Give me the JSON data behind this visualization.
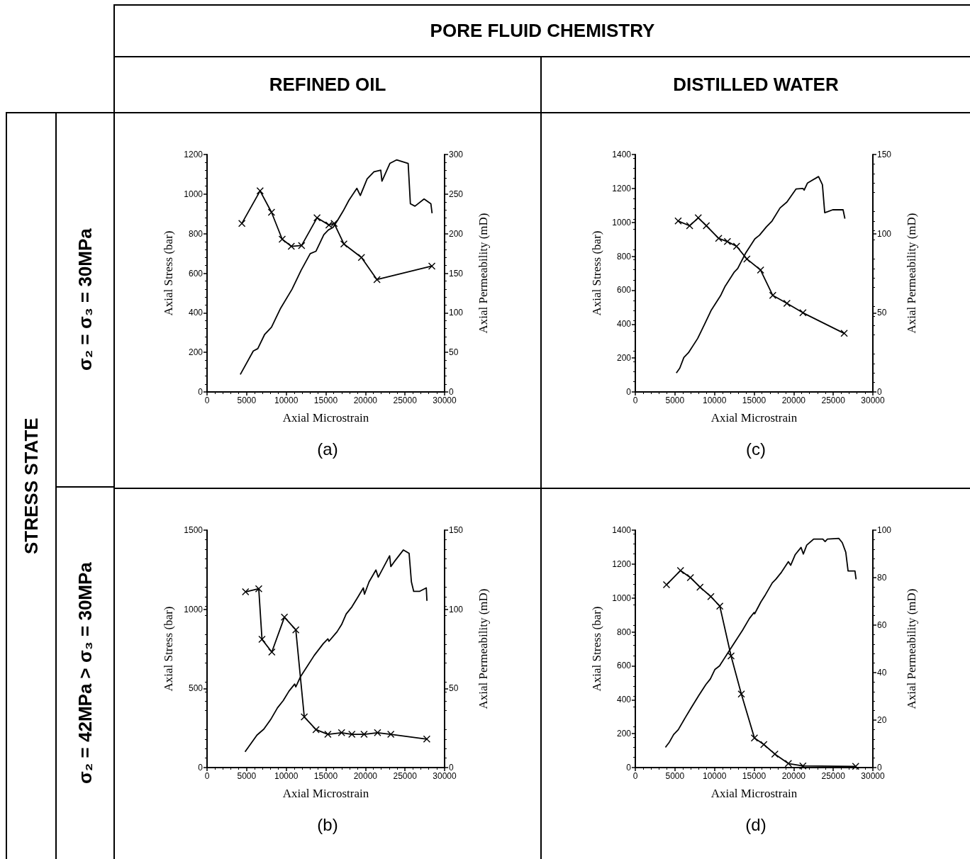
{
  "chart_data": [
    {
      "type": "other",
      "annotations": [
        "PORE FLUID CHEMISTRY",
        "REFINED OIL",
        "DISTILLED WATER",
        "STRESS STATE",
        "σ₂ = σ₃ = 30MPa",
        "σ₂ = 42MPa > σ₃ = 30MPa"
      ]
    },
    {
      "type": "line",
      "xlabel": "Axial Microstrain",
      "ylabel": "Axial Stress (bar)",
      "y2label": "Axial Permeability (mD)",
      "annotations": [
        "(a)"
      ],
      "xlim": [
        0,
        30000
      ],
      "xticks": [
        0,
        5000,
        10000,
        15000,
        20000,
        25000,
        30000
      ],
      "ylim": [
        0,
        1200
      ],
      "yticks": [
        0,
        200,
        400,
        600,
        800,
        1000,
        1200
      ],
      "y2lim": [
        0,
        300
      ],
      "y2ticks": [
        0,
        50,
        100,
        150,
        200,
        250,
        300
      ],
      "grid": false,
      "series": [
        {
          "color": "#000000",
          "marker": "none",
          "x": [
            4200,
            5840,
            6410,
            7280,
            8140,
            9290,
            10730,
            11880,
            13030,
            13750,
            14750,
            15330,
            15900,
            16480,
            17200,
            17920,
            18920,
            19360,
            20220,
            21080,
            21940,
            22090,
            23090,
            23960,
            25400,
            25680,
            26260,
            27410,
            28270,
            28420
          ],
          "values": [
            88,
            207,
            219,
            291,
            327,
            423,
            519,
            615,
            699,
            711,
            795,
            819,
            831,
            867,
            915,
            969,
            1029,
            993,
            1077,
            1113,
            1121,
            1065,
            1155,
            1173,
            1155,
            951,
            939,
            975,
            951,
            903
          ]
        },
        {
          "color": "#000000",
          "marker": "cross",
          "axis": "y2",
          "x": [
            4400,
            6700,
            8140,
            9490,
            10640,
            11940,
            13890,
            15390,
            16050,
            17280,
            19500,
            21460,
            28390
          ],
          "values": [
            213,
            254,
            227,
            193,
            184,
            185,
            220,
            211,
            213,
            187,
            170,
            142,
            159
          ]
        }
      ]
    },
    {
      "type": "line",
      "xlabel": "Axial Microstrain",
      "ylabel": "Axial Stress (bar)",
      "y2label": "Axial Permeability (mD)",
      "annotations": [
        "(c)"
      ],
      "xlim": [
        0,
        30000
      ],
      "xticks": [
        0,
        5000,
        10000,
        15000,
        20000,
        25000,
        30000
      ],
      "ylim": [
        0,
        1400
      ],
      "yticks": [
        0,
        200,
        400,
        600,
        800,
        1000,
        1200,
        1400
      ],
      "y2lim": [
        0,
        150
      ],
      "y2ticks": [
        0,
        50,
        100,
        150
      ],
      "grid": false,
      "series": [
        {
          "color": "#000000",
          "marker": "none",
          "x": [
            5180,
            5610,
            6130,
            6710,
            7870,
            8740,
            9600,
            10760,
            11340,
            12500,
            12930,
            13940,
            15100,
            15680,
            16550,
            17270,
            18280,
            19150,
            20310,
            21170,
            21320,
            21750,
            23140,
            23630,
            23920,
            24360,
            24930,
            26240,
            26470
          ],
          "values": [
            112,
            140,
            203,
            231,
            315,
            399,
            483,
            567,
            623,
            707,
            728,
            819,
            903,
            924,
            973,
            1008,
            1085,
            1120,
            1197,
            1200,
            1190,
            1232,
            1270,
            1222,
            1057,
            1064,
            1074,
            1074,
            1022
          ]
        },
        {
          "color": "#000000",
          "marker": "cross",
          "axis": "y2",
          "x": [
            5410,
            6860,
            7950,
            8970,
            10530,
            11630,
            12790,
            14090,
            15820,
            17360,
            19150,
            21170,
            26380
          ],
          "values": [
            108,
            105,
            110,
            105,
            97,
            95,
            92,
            84,
            77,
            61,
            56,
            50,
            37
          ]
        }
      ]
    },
    {
      "type": "line",
      "xlabel": "Axial Microstrain",
      "ylabel": "Axial Stress (bar)",
      "y2label": "Axial Permeability (mD)",
      "annotations": [
        "(b)"
      ],
      "xlim": [
        0,
        30000
      ],
      "xticks": [
        0,
        5000,
        10000,
        15000,
        20000,
        25000,
        30000
      ],
      "ylim": [
        0,
        1500
      ],
      "yticks": [
        0,
        500,
        1000,
        1500
      ],
      "y2lim": [
        0,
        150
      ],
      "y2ticks": [
        0,
        50,
        100,
        150
      ],
      "grid": false,
      "series": [
        {
          "color": "#000000",
          "marker": "none",
          "x": [
            4800,
            6300,
            7170,
            8030,
            8900,
            9620,
            10350,
            11070,
            11210,
            11790,
            12370,
            13530,
            14680,
            15260,
            15400,
            16420,
            16990,
            17570,
            18290,
            19020,
            19740,
            19880,
            20460,
            21330,
            21620,
            23060,
            23210,
            23640,
            24800,
            25520,
            25810,
            26100,
            26820,
            27690,
            27770
          ],
          "values": [
            100,
            205,
            243,
            303,
            378,
            423,
            483,
            528,
            510,
            573,
            618,
            708,
            783,
            813,
            798,
            858,
            903,
            970,
            1015,
            1075,
            1135,
            1095,
            1173,
            1248,
            1203,
            1338,
            1270,
            1300,
            1375,
            1353,
            1173,
            1113,
            1113,
            1135,
            1053
          ]
        },
        {
          "color": "#000000",
          "marker": "cross",
          "axis": "y2",
          "x": [
            4860,
            6530,
            6940,
            8180,
            9770,
            11210,
            12280,
            13760,
            15260,
            16990,
            18290,
            19830,
            21530,
            23210,
            27750
          ],
          "values": [
            111,
            113,
            81,
            73,
            95,
            87,
            32,
            24,
            21,
            22,
            21,
            21,
            22,
            21,
            18
          ]
        }
      ]
    },
    {
      "type": "line",
      "xlabel": "Axial Microstrain",
      "ylabel": "Axial Stress (bar)",
      "y2label": "Axial Permeability (mD)",
      "annotations": [
        "(d)"
      ],
      "xlim": [
        0,
        30000
      ],
      "xticks": [
        0,
        5000,
        10000,
        15000,
        20000,
        25000,
        30000
      ],
      "ylim": [
        0,
        1400
      ],
      "yticks": [
        0,
        200,
        400,
        600,
        800,
        1000,
        1200,
        1400
      ],
      "y2lim": [
        0,
        100
      ],
      "y2ticks": [
        0,
        20,
        40,
        60,
        80,
        100
      ],
      "grid": false,
      "series": [
        {
          "color": "#000000",
          "marker": "none",
          "x": [
            3800,
            4260,
            4840,
            5420,
            6290,
            7010,
            8030,
            8900,
            9480,
            10060,
            10640,
            11800,
            12960,
            13540,
            14410,
            14990,
            15070,
            15860,
            16430,
            17300,
            17740,
            18460,
            19330,
            19620,
            20200,
            20930,
            21220,
            21650,
            22520,
            23680,
            23970,
            24260,
            25710,
            26140,
            26580,
            26870,
            27740,
            27880
          ],
          "values": [
            119,
            147,
            195,
            223,
            293,
            349,
            426,
            489,
            523,
            579,
            600,
            684,
            768,
            810,
            879,
            914,
            907,
            977,
            1019,
            1089,
            1110,
            1152,
            1214,
            1193,
            1256,
            1298,
            1259,
            1312,
            1347,
            1347,
            1333,
            1347,
            1351,
            1326,
            1270,
            1159,
            1159,
            1110
          ]
        },
        {
          "color": "#000000",
          "marker": "cross",
          "axis": "y2",
          "x": [
            3940,
            5710,
            6960,
            8170,
            9540,
            10670,
            12090,
            13390,
            15040,
            16230,
            17620,
            19330,
            21160,
            27830
          ],
          "values": [
            77,
            83,
            80,
            76,
            72,
            68,
            47,
            31,
            12.5,
            9.7,
            5.7,
            1.7,
            0.7,
            0.5
          ]
        }
      ]
    }
  ]
}
